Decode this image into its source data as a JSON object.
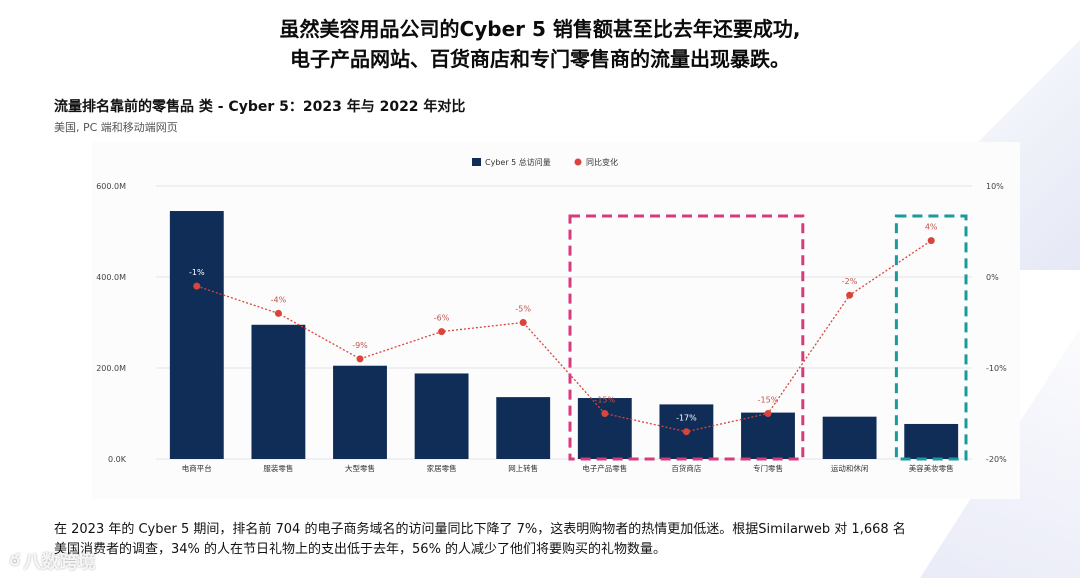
{
  "headline": {
    "line1": "虽然美容用品公司的Cyber 5 销售额甚至比去年还要成功,",
    "line2": "电子产品网站、百货商店和专门零售商的流量出现暴跌。"
  },
  "chart_title": "流量排名靠前的零售品 类 - Cyber 5：2023 年与 2022 年对比",
  "chart_subtitle": "美国, PC 端和移动端网页",
  "chart_data": {
    "type": "bar+line",
    "categories": [
      "电商平台",
      "服装零售",
      "大型零售",
      "家居零售",
      "网上转售",
      "电子产品零售",
      "百货商店",
      "专门零售",
      "运动和休闲",
      "美容美妆零售"
    ],
    "series": [
      {
        "name": "Cyber 5 总访问量",
        "type": "bar",
        "axis": "left",
        "color": "#0f2d57",
        "values": [
          545,
          295,
          205,
          188,
          136,
          134,
          120,
          102,
          93,
          77
        ]
      },
      {
        "name": "同比变化",
        "type": "line",
        "axis": "right",
        "color": "#d9453a",
        "values": [
          -1,
          -4,
          -9,
          -6,
          -5,
          -15,
          -17,
          -15,
          -2,
          4
        ],
        "labels": [
          "-1%",
          "-4%",
          "-9%",
          "-6%",
          "-5%",
          "-15%",
          "-17%",
          "-15%",
          "-2%",
          "4%"
        ]
      }
    ],
    "y_left": {
      "min": 0,
      "max": 600,
      "ticks": [
        0,
        200,
        400,
        600
      ],
      "tick_labels": [
        "0.0K",
        "200.0M",
        "400.0M",
        "600.0M"
      ]
    },
    "y_right": {
      "min": -20,
      "max": 10,
      "ticks": [
        -20,
        -10,
        0,
        10
      ],
      "tick_labels": [
        "-20%",
        "-10%",
        "0%",
        "10%"
      ]
    },
    "legend": [
      "Cyber 5 总访问量",
      "同比变化"
    ],
    "legend_position": "top-center",
    "highlights": [
      {
        "categories": [
          "电子产品零售",
          "百货商店",
          "专门零售"
        ],
        "color": "#d63c7d",
        "style": "dashed"
      },
      {
        "categories": [
          "美容美妆零售"
        ],
        "color": "#1a9a9c",
        "style": "dashed"
      }
    ]
  },
  "footer": {
    "line1": "在 2023 年的 Cyber 5 期间，排名前 704 的电子商务域名的访问量同比下降了 7%，这表明购物者的热情更加低迷。根据Similarweb 对 1,668 名",
    "line2": "美国消费者的调查，34% 的人在节日礼物上的支出低于去年，56% 的人减少了他们将要购买的礼物数量。"
  },
  "watermark": "八数跨境"
}
